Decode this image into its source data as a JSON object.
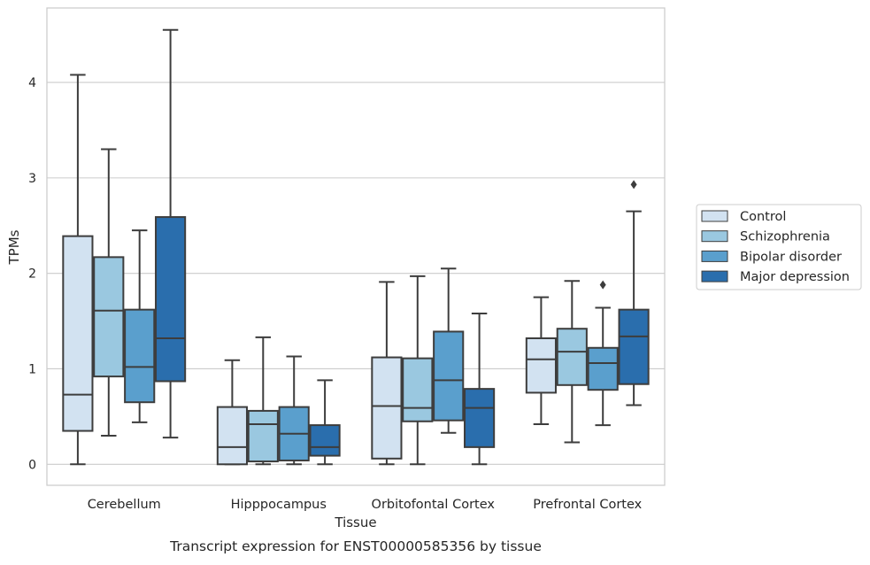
{
  "chart_data": {
    "type": "box",
    "title": "",
    "caption": "Transcript expression for ENST00000585356 by tissue",
    "xlabel": "Tissue",
    "ylabel": "TPMs",
    "ylim": [
      -0.22,
      4.78
    ],
    "yticks": [
      0,
      1,
      2,
      3,
      4
    ],
    "grid": "horizontal",
    "legend_position": "right",
    "categories": [
      "Cerebellum",
      "Hipppocampus",
      "Orbitofontal Cortex",
      "Prefrontal Cortex"
    ],
    "series": [
      {
        "name": "Control",
        "color": "#d2e2f1",
        "boxes": [
          {
            "whislo": 0.0,
            "q1": 0.35,
            "med": 0.73,
            "q3": 2.39,
            "whishi": 4.08,
            "fliers": []
          },
          {
            "whislo": 0.0,
            "q1": 0.0,
            "med": 0.18,
            "q3": 0.6,
            "whishi": 1.09,
            "fliers": []
          },
          {
            "whislo": 0.0,
            "q1": 0.06,
            "med": 0.61,
            "q3": 1.12,
            "whishi": 1.91,
            "fliers": []
          },
          {
            "whislo": 0.42,
            "q1": 0.75,
            "med": 1.1,
            "q3": 1.32,
            "whishi": 1.75,
            "fliers": []
          }
        ]
      },
      {
        "name": "Schizophrenia",
        "color": "#9ac8e0",
        "boxes": [
          {
            "whislo": 0.3,
            "q1": 0.92,
            "med": 1.61,
            "q3": 2.17,
            "whishi": 3.3,
            "fliers": []
          },
          {
            "whislo": 0.0,
            "q1": 0.03,
            "med": 0.42,
            "q3": 0.56,
            "whishi": 1.33,
            "fliers": []
          },
          {
            "whislo": 0.0,
            "q1": 0.45,
            "med": 0.59,
            "q3": 1.11,
            "whishi": 1.97,
            "fliers": []
          },
          {
            "whislo": 0.23,
            "q1": 0.83,
            "med": 1.18,
            "q3": 1.42,
            "whishi": 1.92,
            "fliers": []
          }
        ]
      },
      {
        "name": "Bipolar disorder",
        "color": "#5a9fcd",
        "boxes": [
          {
            "whislo": 0.44,
            "q1": 0.65,
            "med": 1.02,
            "q3": 1.62,
            "whishi": 2.45,
            "fliers": []
          },
          {
            "whislo": 0.0,
            "q1": 0.04,
            "med": 0.32,
            "q3": 0.6,
            "whishi": 1.13,
            "fliers": []
          },
          {
            "whislo": 0.33,
            "q1": 0.46,
            "med": 0.88,
            "q3": 1.39,
            "whishi": 2.05,
            "fliers": []
          },
          {
            "whislo": 0.41,
            "q1": 0.78,
            "med": 1.06,
            "q3": 1.22,
            "whishi": 1.64,
            "fliers": [
              1.88
            ]
          }
        ]
      },
      {
        "name": "Major depression",
        "color": "#2a6ead",
        "boxes": [
          {
            "whislo": 0.28,
            "q1": 0.87,
            "med": 1.32,
            "q3": 2.59,
            "whishi": 4.55,
            "fliers": []
          },
          {
            "whislo": 0.0,
            "q1": 0.09,
            "med": 0.18,
            "q3": 0.41,
            "whishi": 0.88,
            "fliers": []
          },
          {
            "whislo": 0.0,
            "q1": 0.18,
            "med": 0.59,
            "q3": 0.79,
            "whishi": 1.58,
            "fliers": []
          },
          {
            "whislo": 0.62,
            "q1": 0.84,
            "med": 1.34,
            "q3": 1.62,
            "whishi": 2.65,
            "fliers": [
              2.93
            ]
          }
        ]
      }
    ]
  }
}
